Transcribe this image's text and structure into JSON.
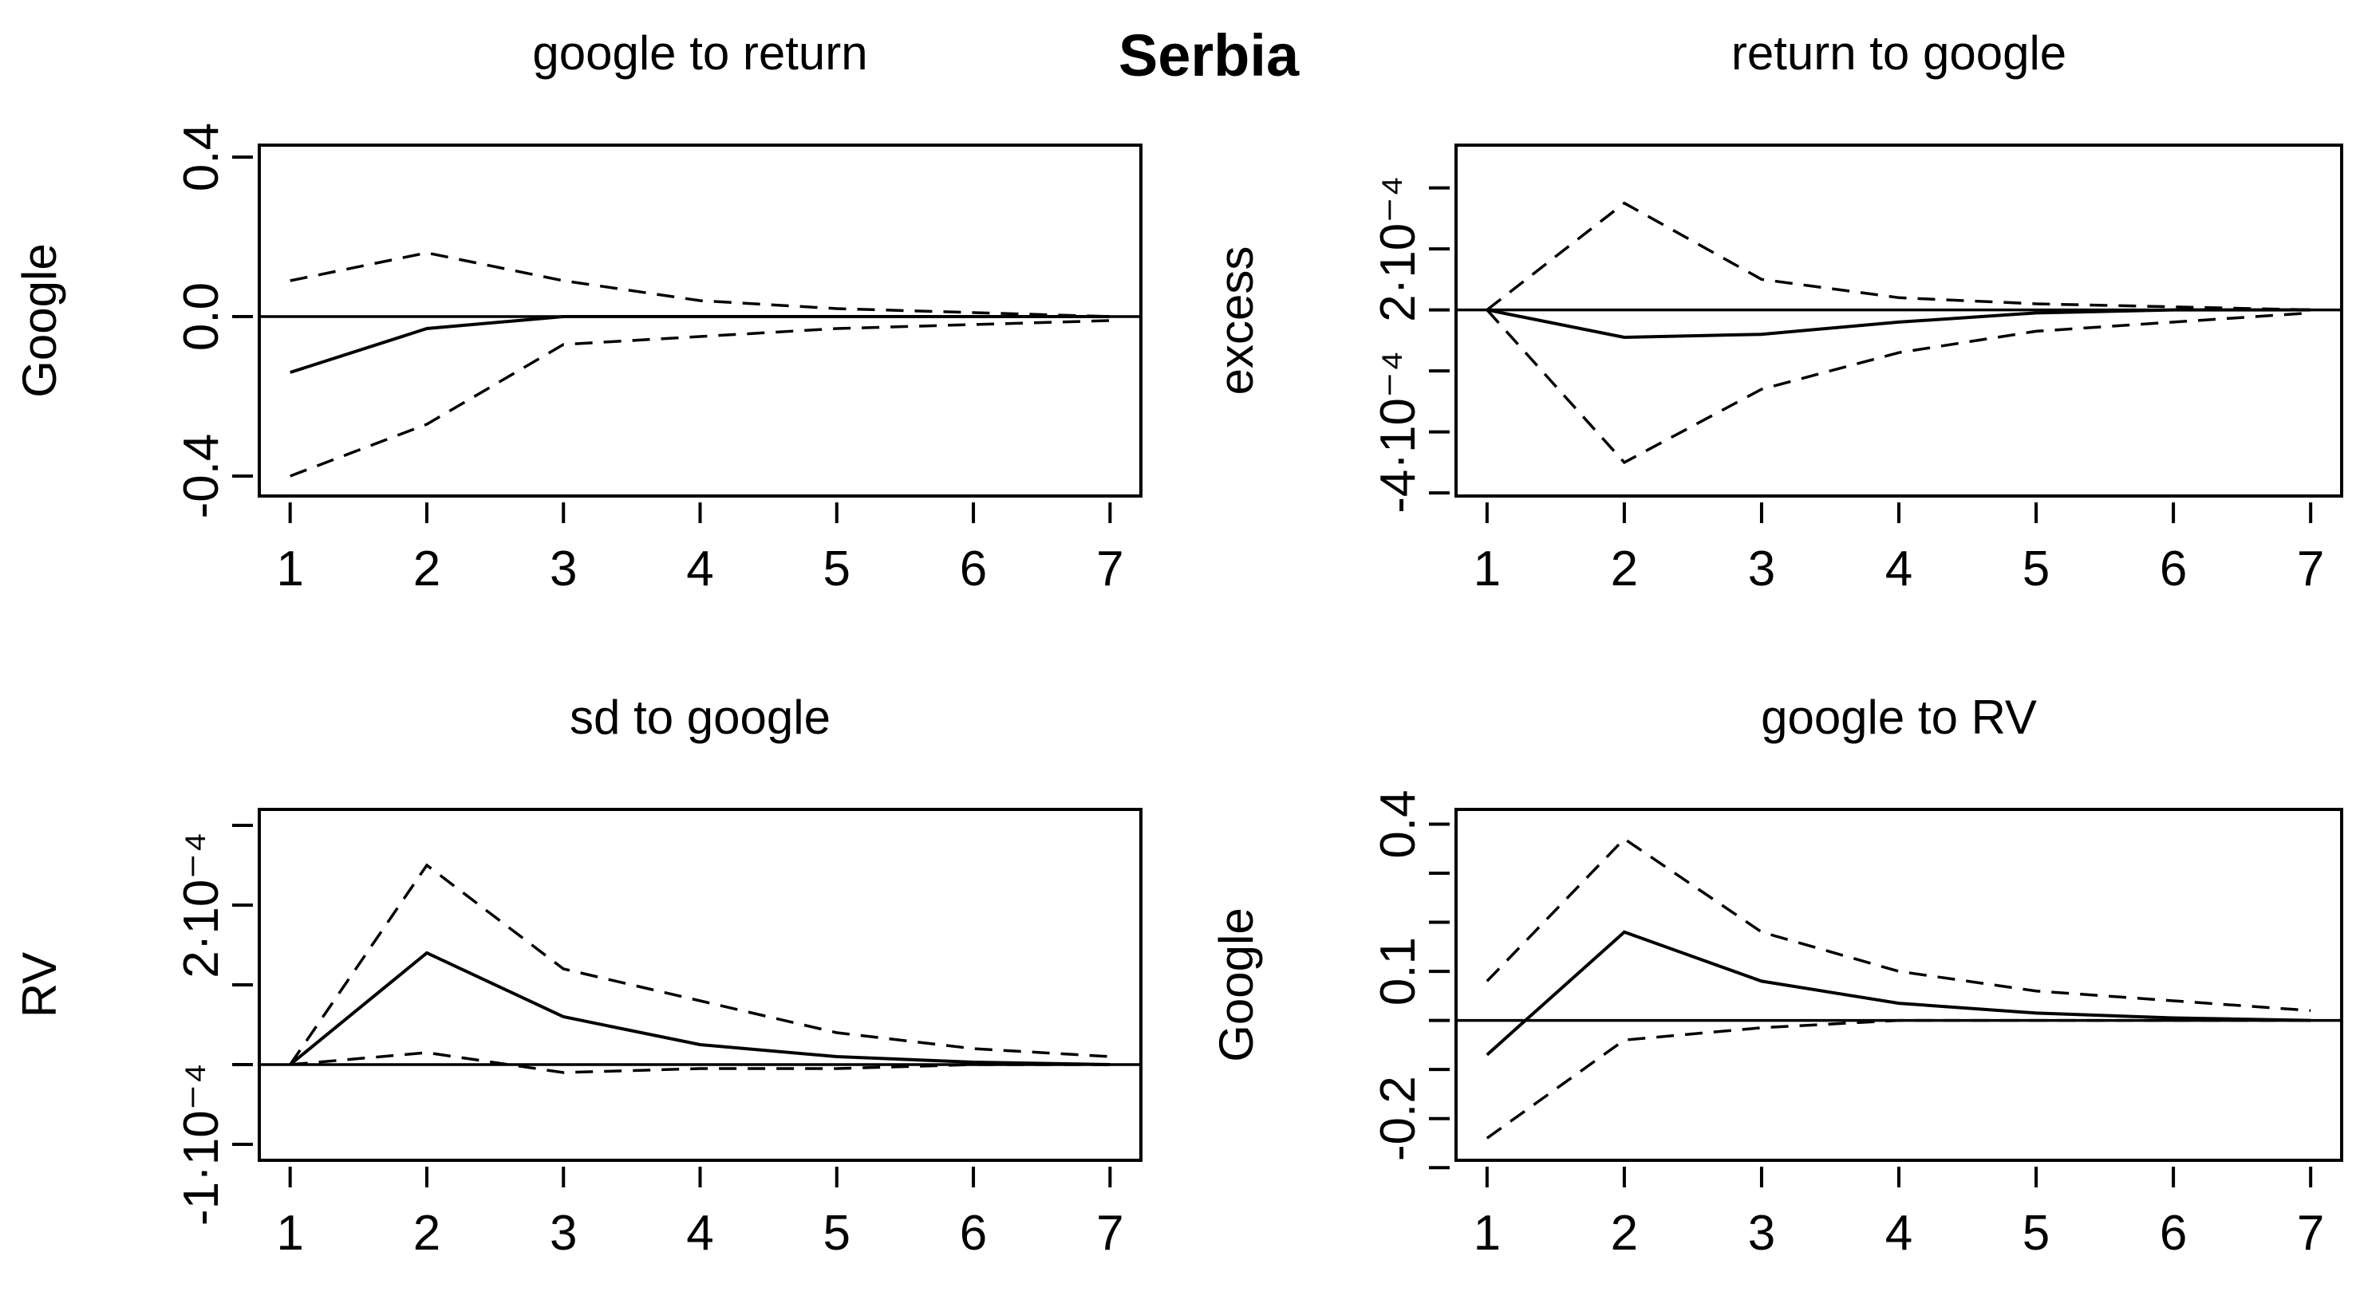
{
  "title": "Serbia",
  "chart_data": [
    {
      "type": "line",
      "title": "google to return",
      "ylabel": "Google",
      "xlabel": "",
      "x": [
        1,
        2,
        3,
        4,
        5,
        6,
        7
      ],
      "xticks": [
        "1",
        "2",
        "3",
        "4",
        "5",
        "6",
        "7"
      ],
      "yticks": [
        {
          "v": -0.4,
          "label": "-0.4"
        },
        {
          "v": 0.0,
          "label": "0.0"
        },
        {
          "v": 0.4,
          "label": "0.4"
        }
      ],
      "ylim": [
        -0.45,
        0.43
      ],
      "zero_line": true,
      "series": [
        {
          "style": "solid",
          "values": [
            -0.14,
            -0.03,
            0.0,
            0.0,
            0.0,
            0.0,
            0.0
          ]
        },
        {
          "style": "dashed",
          "values": [
            0.09,
            0.16,
            0.09,
            0.04,
            0.02,
            0.01,
            0.0
          ]
        },
        {
          "style": "dashed",
          "values": [
            -0.4,
            -0.27,
            -0.07,
            -0.05,
            -0.03,
            -0.02,
            -0.01
          ]
        }
      ]
    },
    {
      "type": "line",
      "title": "return to google",
      "ylabel": "excess",
      "xlabel": "",
      "x": [
        1,
        2,
        3,
        4,
        5,
        6,
        7
      ],
      "xticks": [
        "1",
        "2",
        "3",
        "4",
        "5",
        "6",
        "7"
      ],
      "yticks": [
        {
          "v": -0.0004,
          "label": "-4·10⁻⁴"
        },
        {
          "v": 0.0002,
          "label": "2·10⁻⁴"
        }
      ],
      "yticks_minor": [
        -0.0006,
        -0.0002,
        0.0,
        0.0004
      ],
      "ylim": [
        -0.00061,
        0.00054
      ],
      "zero_line": true,
      "series": [
        {
          "style": "solid",
          "values": [
            0.0,
            -9e-05,
            -8e-05,
            -4e-05,
            -1e-05,
            0.0,
            0.0
          ]
        },
        {
          "style": "dashed",
          "values": [
            0.0,
            0.00035,
            0.0001,
            4e-05,
            2e-05,
            1e-05,
            0.0
          ]
        },
        {
          "style": "dashed",
          "values": [
            0.0,
            -0.0005,
            -0.00026,
            -0.00014,
            -7e-05,
            -4e-05,
            -1e-05
          ]
        }
      ]
    },
    {
      "type": "line",
      "title": "sd to google",
      "ylabel": "RV",
      "xlabel": "",
      "x": [
        1,
        2,
        3,
        4,
        5,
        6,
        7
      ],
      "xticks": [
        "1",
        "2",
        "3",
        "4",
        "5",
        "6",
        "7"
      ],
      "yticks": [
        {
          "v": -0.0001,
          "label": "-1·10⁻⁴"
        },
        {
          "v": 0.0002,
          "label": "2·10⁻⁴"
        }
      ],
      "yticks_minor": [
        0.0,
        0.0001,
        0.0003
      ],
      "ylim": [
        -0.00012,
        0.00032
      ],
      "zero_line": true,
      "series": [
        {
          "style": "solid",
          "values": [
            0.0,
            0.00014,
            6e-05,
            2.5e-05,
            1e-05,
            3e-06,
            0.0
          ]
        },
        {
          "style": "dashed",
          "values": [
            0.0,
            0.00025,
            0.00012,
            8e-05,
            4e-05,
            2e-05,
            1e-05
          ]
        },
        {
          "style": "dashed",
          "values": [
            0.0,
            1.5e-05,
            -1e-05,
            -5e-06,
            -5e-06,
            0.0,
            0.0
          ]
        }
      ]
    },
    {
      "type": "line",
      "title": "google to RV",
      "ylabel": "Google",
      "xlabel": "",
      "x": [
        1,
        2,
        3,
        4,
        5,
        6,
        7
      ],
      "xticks": [
        "1",
        "2",
        "3",
        "4",
        "5",
        "6",
        "7"
      ],
      "yticks": [
        {
          "v": -0.2,
          "label": "-0.2"
        },
        {
          "v": 0.1,
          "label": "0.1"
        },
        {
          "v": 0.4,
          "label": "0.4"
        }
      ],
      "yticks_minor": [
        -0.3,
        -0.1,
        0.0,
        0.2,
        0.3
      ],
      "ylim": [
        -0.285,
        0.43
      ],
      "zero_line": true,
      "series": [
        {
          "style": "solid",
          "values": [
            -0.07,
            0.18,
            0.08,
            0.035,
            0.015,
            0.005,
            0.0
          ]
        },
        {
          "style": "dashed",
          "values": [
            0.08,
            0.37,
            0.18,
            0.1,
            0.06,
            0.04,
            0.02
          ]
        },
        {
          "style": "dashed",
          "values": [
            -0.24,
            -0.04,
            -0.015,
            0.0,
            0.0,
            0.0,
            0.0
          ]
        }
      ]
    }
  ]
}
